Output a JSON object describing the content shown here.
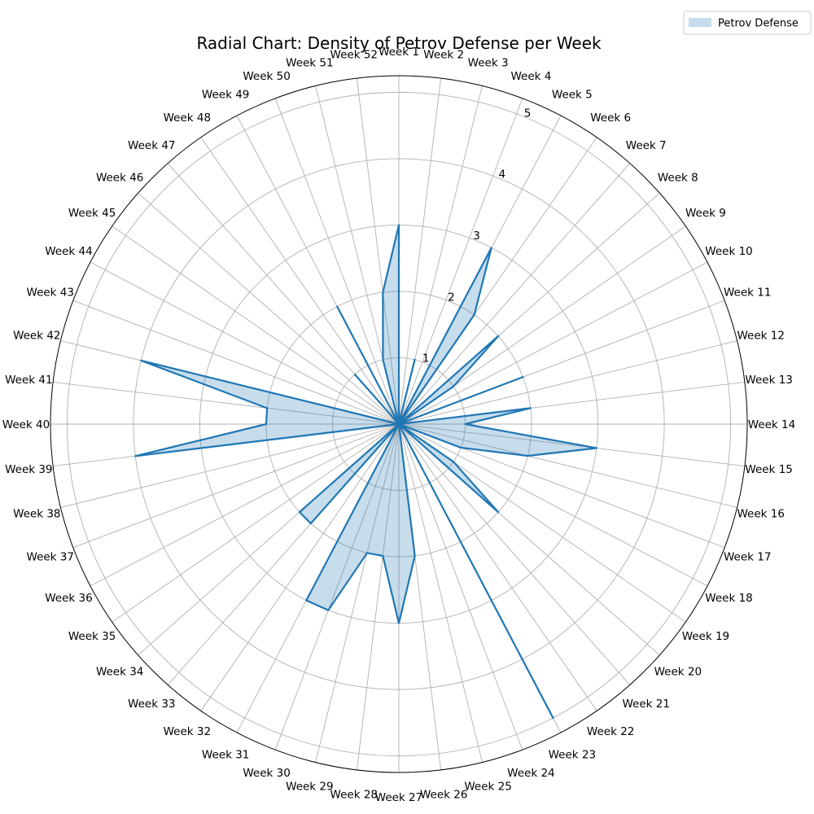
{
  "chart_data": {
    "type": "radar",
    "title": "Radial Chart: Density of Petrov Defense per Week",
    "categories": [
      "Week 1",
      "Week 2",
      "Week 3",
      "Week 4",
      "Week 5",
      "Week 6",
      "Week 7",
      "Week 8",
      "Week 9",
      "Week 10",
      "Week 11",
      "Week 12",
      "Week 13",
      "Week 14",
      "Week 15",
      "Week 16",
      "Week 17",
      "Week 18",
      "Week 19",
      "Week 20",
      "Week 21",
      "Week 22",
      "Week 23",
      "Week 24",
      "Week 25",
      "Week 26",
      "Week 27",
      "Week 28",
      "Week 29",
      "Week 30",
      "Week 31",
      "Week 32",
      "Week 33",
      "Week 34",
      "Week 35",
      "Week 36",
      "Week 37",
      "Week 38",
      "Week 39",
      "Week 40",
      "Week 41",
      "Week 42",
      "Week 43",
      "Week 44",
      "Week 45",
      "Week 46",
      "Week 47",
      "Week 48",
      "Week 49",
      "Week 50",
      "Week 51",
      "Week 52"
    ],
    "series": [
      {
        "name": "Petrov Defense",
        "values": [
          3,
          0,
          1,
          0,
          3,
          2,
          0,
          2,
          1,
          0,
          2,
          0,
          2,
          1,
          3,
          2,
          1,
          0,
          1,
          2,
          0,
          0,
          5,
          0,
          0,
          2,
          3,
          2,
          2,
          3,
          3,
          0,
          2,
          2,
          0,
          0,
          0,
          0,
          4,
          2,
          2,
          4,
          0,
          0,
          0,
          0,
          1,
          0,
          2,
          0,
          1,
          2
        ]
      }
    ],
    "r_ticks": [
      1,
      2,
      3,
      4,
      5
    ],
    "rlim": [
      0,
      5.25
    ],
    "grid": true,
    "legend_position": "top-right",
    "colors": {
      "line": "#1f77b4",
      "fill": "#1f77b4",
      "grid": "#b0b0b0",
      "axis": "#000000"
    }
  }
}
